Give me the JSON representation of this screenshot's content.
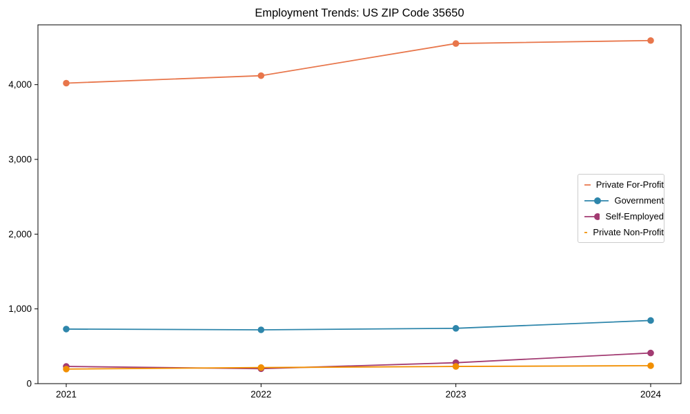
{
  "figure": {
    "background": "#ffffff",
    "spine_color": "#000000"
  },
  "chart_data": {
    "type": "line",
    "title": "Employment Trends: US ZIP Code 35650",
    "xlabel": "",
    "ylabel": "",
    "categories": [
      "2021",
      "2022",
      "2023",
      "2024"
    ],
    "series": [
      {
        "name": "Private For-Profit",
        "color": "#E8764B",
        "values": [
          4020,
          4120,
          4550,
          4590
        ]
      },
      {
        "name": "Government",
        "color": "#2E86AB",
        "values": [
          730,
          720,
          740,
          845
        ]
      },
      {
        "name": "Self-Employed",
        "color": "#A23B72",
        "values": [
          230,
          200,
          280,
          410
        ]
      },
      {
        "name": "Private Non-Profit",
        "color": "#F18F01",
        "values": [
          195,
          215,
          230,
          240
        ]
      }
    ],
    "ylim": [
      0,
      4800
    ],
    "yticks": [
      {
        "value": 0,
        "label": "0"
      },
      {
        "value": 1000,
        "label": "1,000"
      },
      {
        "value": 2000,
        "label": "2,000"
      },
      {
        "value": 3000,
        "label": "3,000"
      },
      {
        "value": 4000,
        "label": "4,000"
      }
    ],
    "grid": false,
    "legend_position": "center-right",
    "marker": "circle"
  }
}
